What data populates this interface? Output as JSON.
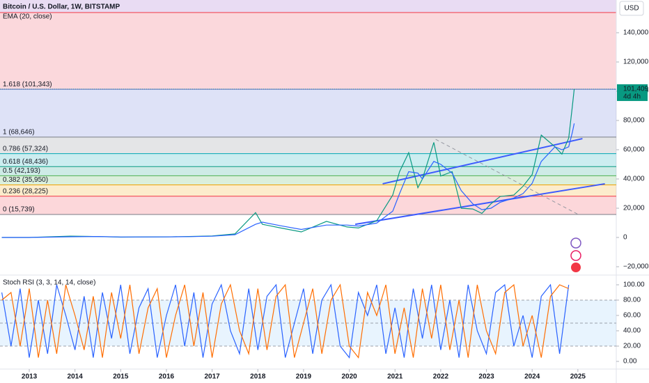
{
  "header": {
    "symbol": "Bitcoin / U.S. Dollar, 1W, BITSTAMP",
    "currency": "USD"
  },
  "chart_data": [
    {
      "type": "line",
      "indicator": "EMA (20, close)",
      "xlim": [
        2012.36,
        2025.84
      ],
      "ylim": [
        -24760,
        162380
      ],
      "xticks": [
        2013,
        2014,
        2015,
        2016,
        2017,
        2018,
        2019,
        2020,
        2021,
        2022,
        2023,
        2024,
        2025
      ],
      "yticks": [
        {
          "value": -20000,
          "label": "−20,000"
        },
        0,
        {
          "value": 20000,
          "label": "20,000"
        },
        {
          "value": 40000,
          "label": "40,000"
        },
        {
          "value": 60000,
          "label": "60,000"
        },
        {
          "value": 80000,
          "label": "80,000"
        },
        {
          "value": 100000,
          "label": "100,000"
        },
        {
          "value": 120000,
          "label": "120,000"
        },
        {
          "value": 140000,
          "label": "140,000"
        }
      ],
      "fib_levels": [
        {
          "label": "1.618 (101,343)",
          "value": 101343,
          "color": "#5b6fd6"
        },
        {
          "label": "1 (68,646)",
          "value": 68646,
          "color": "#787b86"
        },
        {
          "label": "0.786 (57,324)",
          "value": 57324,
          "color": "#00a6b4"
        },
        {
          "label": "0.618 (48,436)",
          "value": 48436,
          "color": "#089981"
        },
        {
          "label": "0.5 (42,193)",
          "value": 42193,
          "color": "#4caf50"
        },
        {
          "label": "0.382 (35,950)",
          "value": 35950,
          "color": "#f0a000"
        },
        {
          "label": "0.236 (28,225)",
          "value": 28225,
          "color": "#f23645"
        },
        {
          "label": "0 (15,739)",
          "value": 15739,
          "color": "#787b86"
        }
      ],
      "last_price": {
        "value": 101409,
        "label": "101,409",
        "countdown": "4d 4h"
      },
      "x": [
        2012.4,
        2013.0,
        2013.9,
        2014.5,
        2015.0,
        2016.0,
        2016.5,
        2017.0,
        2017.5,
        2017.95,
        2018.1,
        2018.5,
        2018.95,
        2019.5,
        2019.95,
        2020.2,
        2020.6,
        2020.95,
        2021.1,
        2021.3,
        2021.5,
        2021.6,
        2021.85,
        2022.0,
        2022.25,
        2022.45,
        2022.7,
        2022.9,
        2023.1,
        2023.3,
        2023.6,
        2023.8,
        2024.0,
        2024.2,
        2024.5,
        2024.65,
        2024.8,
        2024.88,
        2024.92
      ],
      "series": [
        {
          "name": "Price",
          "color": "#089981",
          "values": [
            10,
            13,
            900,
            600,
            250,
            400,
            650,
            1000,
            2500,
            17000,
            9000,
            6500,
            3800,
            11000,
            7200,
            6500,
            11500,
            29000,
            45000,
            58000,
            34000,
            40000,
            65000,
            42000,
            45000,
            20000,
            19500,
            16500,
            23000,
            28000,
            29000,
            35000,
            43000,
            70000,
            62000,
            57000,
            68000,
            90000,
            101409
          ]
        },
        {
          "name": "EMA",
          "color": "#2962ff",
          "values": [
            10,
            12,
            500,
            650,
            350,
            380,
            550,
            850,
            1900,
            9000,
            10500,
            8000,
            5500,
            8500,
            8500,
            7800,
            9800,
            18000,
            30000,
            45000,
            44000,
            40000,
            52000,
            50000,
            44000,
            32000,
            23000,
            19000,
            20000,
            24000,
            27000,
            30000,
            37000,
            52000,
            62000,
            60000,
            62000,
            72000,
            78000
          ]
        }
      ],
      "trendlines": [
        {
          "x": [
            2020.73,
            2025.1
          ],
          "values": [
            36700,
            67600
          ],
          "color": "#3d5afe"
        },
        {
          "x": [
            2020.13,
            2025.59
          ],
          "values": [
            9000,
            36700
          ],
          "color": "#3d5afe"
        },
        {
          "x": [
            2021.89,
            2025.01
          ],
          "values": [
            67100,
            15700
          ],
          "color": "#9598a1",
          "dashed": true
        }
      ]
    },
    {
      "type": "line",
      "title": "Stoch RSI (3, 3, 14, 14, close)",
      "xlim": [
        2012.36,
        2025.84
      ],
      "ylim": [
        -10,
        112.7
      ],
      "yticks": [
        {
          "value": 0,
          "label": "0.00"
        },
        {
          "value": 20,
          "label": "20.00"
        },
        {
          "value": 40,
          "label": "40.00"
        },
        {
          "value": 60,
          "label": "60.00"
        },
        {
          "value": 80,
          "label": "80.00"
        },
        {
          "value": 100,
          "label": "100.00"
        }
      ],
      "bands": [
        80,
        50,
        20
      ],
      "x": [
        2012.4,
        2012.6,
        2012.8,
        2013.0,
        2013.2,
        2013.4,
        2013.6,
        2013.8,
        2014.0,
        2014.2,
        2014.4,
        2014.6,
        2014.8,
        2015.0,
        2015.2,
        2015.4,
        2015.6,
        2015.8,
        2016.0,
        2016.2,
        2016.4,
        2016.6,
        2016.8,
        2017.0,
        2017.2,
        2017.4,
        2017.6,
        2017.8,
        2018.0,
        2018.2,
        2018.4,
        2018.6,
        2018.8,
        2019.0,
        2019.2,
        2019.4,
        2019.6,
        2019.8,
        2020.0,
        2020.2,
        2020.4,
        2020.6,
        2020.8,
        2021.0,
        2021.2,
        2021.4,
        2021.6,
        2021.8,
        2022.0,
        2022.2,
        2022.4,
        2022.6,
        2022.8,
        2023.0,
        2023.2,
        2023.4,
        2023.6,
        2023.8,
        2024.0,
        2024.2,
        2024.4,
        2024.6,
        2024.8
      ],
      "series": [
        {
          "name": "K",
          "color": "#2962ff",
          "values": [
            90,
            20,
            95,
            5,
            80,
            10,
            100,
            60,
            15,
            85,
            5,
            90,
            30,
            100,
            10,
            70,
            95,
            5,
            60,
            100,
            20,
            90,
            5,
            75,
            100,
            40,
            10,
            95,
            15,
            85,
            100,
            5,
            50,
            95,
            10,
            80,
            100,
            20,
            5,
            90,
            60,
            100,
            10,
            70,
            5,
            95,
            30,
            100,
            15,
            80,
            5,
            100,
            40,
            10,
            90,
            100,
            20,
            60,
            5,
            85,
            100,
            10,
            100
          ]
        },
        {
          "name": "D",
          "color": "#ff6d00",
          "values": [
            80,
            90,
            20,
            95,
            5,
            80,
            10,
            100,
            60,
            15,
            85,
            5,
            90,
            30,
            100,
            10,
            70,
            95,
            5,
            60,
            100,
            20,
            90,
            5,
            75,
            100,
            40,
            10,
            95,
            15,
            85,
            100,
            5,
            50,
            95,
            10,
            80,
            100,
            20,
            5,
            90,
            60,
            100,
            10,
            70,
            5,
            95,
            30,
            100,
            15,
            80,
            5,
            100,
            40,
            10,
            90,
            100,
            20,
            60,
            5,
            85,
            100,
            95
          ]
        }
      ]
    }
  ]
}
